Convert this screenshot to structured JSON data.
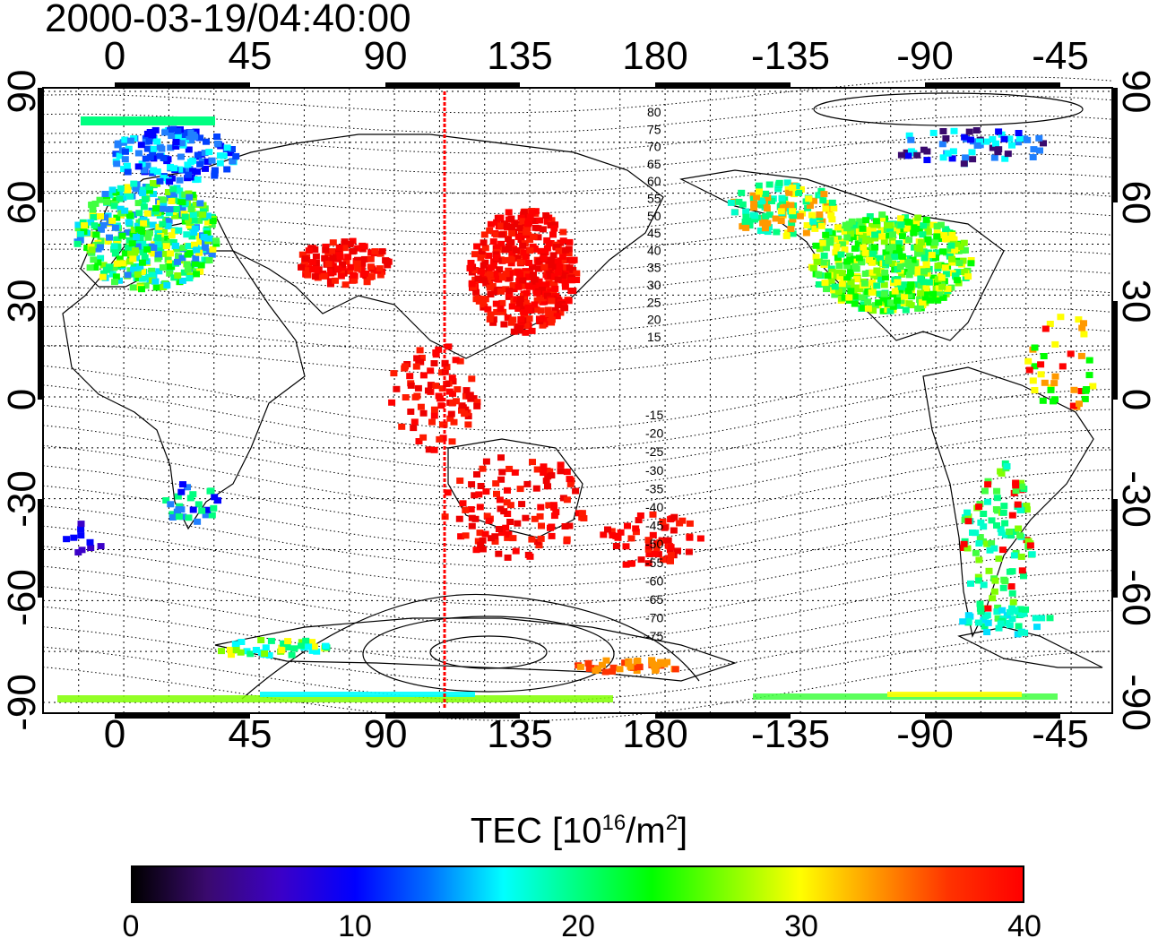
{
  "title": "2000-03-19/04:40:00",
  "map": {
    "lon_ticks_top": [
      "0",
      "45",
      "90",
      "135",
      "180",
      "-135",
      "-90",
      "-45"
    ],
    "lon_ticks_bottom": [
      "0",
      "45",
      "90",
      "135",
      "180",
      "-135",
      "-90",
      "-45"
    ],
    "lat_ticks_left": [
      "90",
      "60",
      "30",
      "0",
      "-30",
      "-60",
      "-90"
    ],
    "lat_ticks_right": [
      "90",
      "60",
      "30",
      "0",
      "-30",
      "-60",
      "-90"
    ],
    "contour_labels_north": [
      "80",
      "75",
      "70",
      "65",
      "60",
      "55",
      "50",
      "45",
      "40",
      "35",
      "30",
      "25",
      "20",
      "15"
    ],
    "contour_labels_south": [
      "-15",
      "-20",
      "-25",
      "-30",
      "-35",
      "-40",
      "-45",
      "-50",
      "-55",
      "-60",
      "-65",
      "-70",
      "-75"
    ],
    "meridian_line_color": "#ff0000"
  },
  "colorbar": {
    "title_main": "TEC  [10",
    "title_sup1": "16",
    "title_mid": "/m",
    "title_sup2": "2",
    "title_end": "]",
    "ticks": [
      "0",
      "10",
      "20",
      "30",
      "40"
    ],
    "colors": [
      "#000000",
      "#3a0a6e",
      "#3b00c8",
      "#0000ff",
      "#0070ff",
      "#00ffff",
      "#00ff80",
      "#00ff00",
      "#80ff00",
      "#ffff00",
      "#ff9900",
      "#ff3300",
      "#ff0000"
    ]
  }
}
